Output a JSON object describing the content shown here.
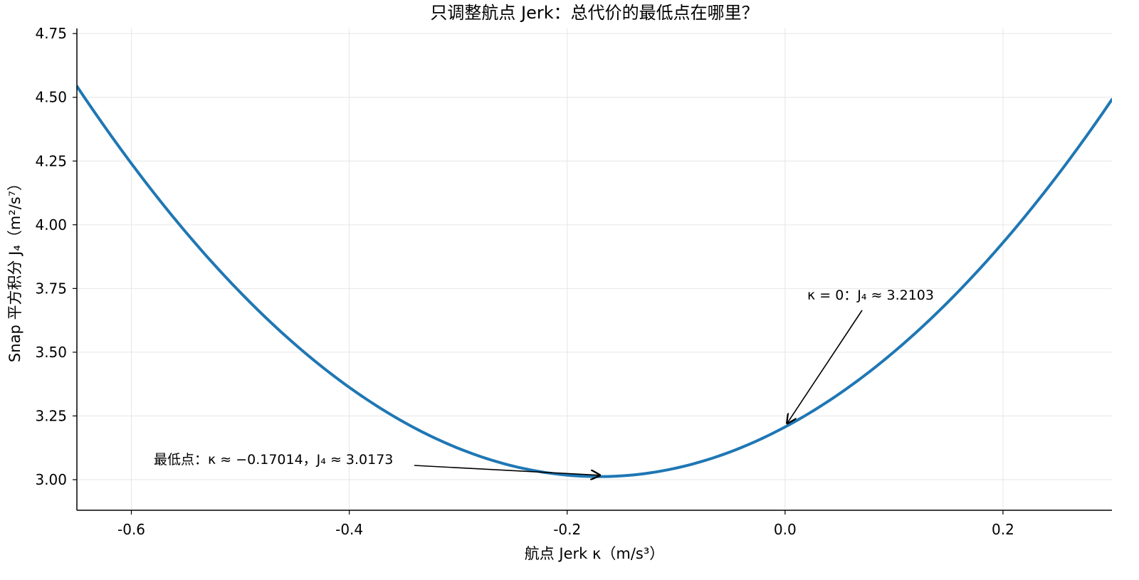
{
  "chart_data": {
    "type": "line",
    "title": "只调整航点 Jerk：总代价的最低点在哪里？",
    "xlabel": "航点 Jerk κ（m/s³）",
    "ylabel": "Snap 平方积分 J₄（m²/s⁷）",
    "xlim": [
      -0.65,
      0.3
    ],
    "ylim": [
      2.88,
      4.77
    ],
    "xticks": [
      -0.6,
      -0.4,
      -0.2,
      0.0,
      0.2
    ],
    "xtick_labels": [
      "-0.6",
      "-0.4",
      "-0.2",
      "0.0",
      "0.2"
    ],
    "yticks": [
      3.0,
      3.25,
      3.5,
      3.75,
      4.0,
      4.25,
      4.5,
      4.75
    ],
    "ytick_labels": [
      "3.00",
      "3.25",
      "3.50",
      "3.75",
      "4.00",
      "4.25",
      "4.50",
      "4.75"
    ],
    "grid": true,
    "series": [
      {
        "color": "#1f77b4",
        "x": [
          -0.65,
          -0.6,
          -0.5,
          -0.4,
          -0.3,
          -0.2,
          -0.17014,
          -0.1,
          0.0,
          0.1,
          0.2,
          0.3
        ],
        "y": [
          4.5593,
          4.248,
          3.6926,
          3.3684,
          3.1224,
          3.0222,
          3.0173,
          3.053,
          3.2103,
          3.501,
          3.922,
          4.4922
        ]
      }
    ],
    "annotations": [
      {
        "text": "最低点：κ ≈ −0.17014，J₄ ≈ 3.0173",
        "point": [
          -0.17014,
          3.0173
        ]
      },
      {
        "text": "κ = 0：J₄ ≈ 3.2103",
        "point": [
          0.0,
          3.2103
        ]
      }
    ]
  }
}
